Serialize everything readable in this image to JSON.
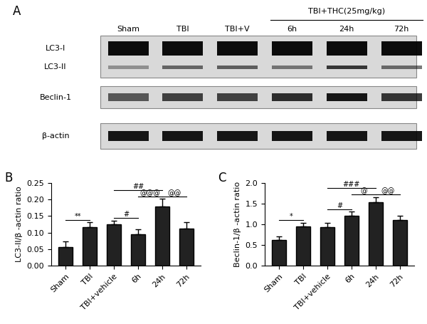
{
  "blot": {
    "panel": "A",
    "lanes": [
      "Sham",
      "TBI",
      "TBI+V",
      "6h",
      "24h",
      "72h"
    ],
    "group": {
      "label": "TBI+THC(25mg/kg)",
      "lanes": [
        "6h",
        "24h",
        "72h"
      ]
    },
    "boxes": [
      [
        "LC3-I",
        "LC3-II"
      ],
      [
        "Beclin-1"
      ],
      [
        "β-actin"
      ]
    ]
  },
  "chart_data": [
    {
      "type": "bar",
      "panel": "B",
      "y_label": "LC3-II/β -actin ratio",
      "categories": [
        "Sham",
        "TBI",
        "TBI+vehicle",
        "6h",
        "24h",
        "72h"
      ],
      "values": [
        0.057,
        0.116,
        0.125,
        0.096,
        0.18,
        0.112
      ],
      "errors": [
        0.017,
        0.015,
        0.012,
        0.014,
        0.022,
        0.02
      ],
      "color": "#222222",
      "ylim": [
        0,
        0.25
      ],
      "yticks": [
        {
          "value": 0,
          "label": "0.00"
        },
        {
          "value": 0.05,
          "label": "0.05"
        },
        {
          "value": 0.1,
          "label": "0.10"
        },
        {
          "value": 0.15,
          "label": "0.15"
        },
        {
          "value": 0.2,
          "label": "0.20"
        },
        {
          "value": 0.25,
          "label": "0.25"
        }
      ],
      "grid": false,
      "annotations": [
        {
          "from": "Sham",
          "to": "TBI",
          "label": "**"
        },
        {
          "from": "TBI+vehicle",
          "to": "6h",
          "label": "#"
        },
        {
          "from": "TBI+vehicle",
          "to": "24h",
          "label": "##"
        },
        {
          "from": "6h",
          "to": "24h",
          "label": "@@@"
        },
        {
          "from": "24h",
          "to": "72h",
          "label": "@@"
        }
      ]
    },
    {
      "type": "bar",
      "panel": "C",
      "y_label": "Beclin-1/β -actin ratio",
      "categories": [
        "Sham",
        "TBI",
        "TBI+vehicle",
        "6h",
        "24h",
        "72h"
      ],
      "values": [
        0.62,
        0.95,
        0.93,
        1.21,
        1.53,
        1.1
      ],
      "errors": [
        0.08,
        0.09,
        0.1,
        0.1,
        0.13,
        0.11
      ],
      "color": "#222222",
      "ylim": [
        0,
        2.0
      ],
      "yticks": [
        {
          "value": 0,
          "label": "0.0"
        },
        {
          "value": 0.5,
          "label": "0.5"
        },
        {
          "value": 1.0,
          "label": "1.0"
        },
        {
          "value": 1.5,
          "label": "1.5"
        },
        {
          "value": 2.0,
          "label": "2.0"
        }
      ],
      "grid": false,
      "annotations": [
        {
          "from": "Sham",
          "to": "TBI",
          "label": "*"
        },
        {
          "from": "TBI+vehicle",
          "to": "6h",
          "label": "#"
        },
        {
          "from": "TBI+vehicle",
          "to": "24h",
          "label": "###"
        },
        {
          "from": "6h",
          "to": "24h",
          "label": "@"
        },
        {
          "from": "24h",
          "to": "72h",
          "label": "@@"
        }
      ]
    }
  ]
}
